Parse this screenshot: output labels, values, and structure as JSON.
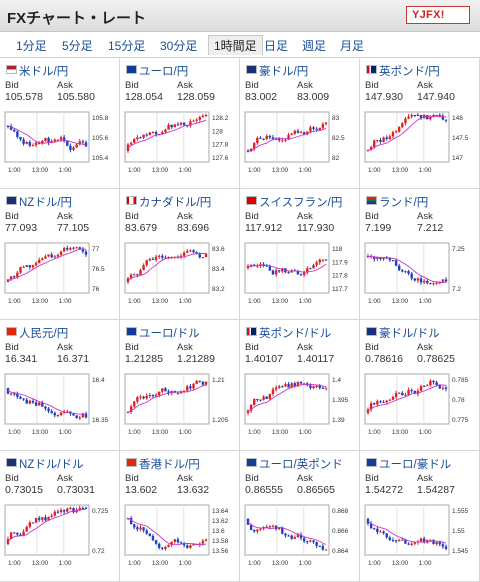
{
  "header": {
    "title": "FXチャート・レート",
    "logo_text": "YJFX!"
  },
  "tabs": [
    "1分足",
    "5分足",
    "15分足",
    "30分足",
    "1時間足",
    "日足",
    "週足",
    "月足"
  ],
  "active_tab": 4,
  "labels": {
    "bid": "Bid",
    "ask": "Ask"
  },
  "colors": {
    "up": "#dd2222",
    "down": "#1f3fbf",
    "ma": "#cc33cc",
    "link": "#1a4d99"
  },
  "cells": [
    {
      "pair": "米ドル/円",
      "flag": "us",
      "bid": "105.578",
      "ask": "105.580",
      "chart": {
        "yticks": [
          "105.8",
          "105.6",
          "105.4"
        ],
        "xticks": [
          "1:00",
          "13:00",
          "1:00"
        ],
        "trend": "down"
      }
    },
    {
      "pair": "ユーロ/円",
      "flag": "eu",
      "bid": "128.054",
      "ask": "128.059",
      "chart": {
        "yticks": [
          "128.2",
          "128",
          "127.8",
          "127.6"
        ],
        "xticks": [
          "1:00",
          "13:00",
          "1:00"
        ],
        "trend": "up"
      }
    },
    {
      "pair": "豪ドル/円",
      "flag": "au",
      "bid": "83.002",
      "ask": "83.009",
      "chart": {
        "yticks": [
          "83",
          "82.5",
          "82"
        ],
        "xticks": [
          "1:00",
          "13:00",
          "1:00"
        ],
        "trend": "up"
      }
    },
    {
      "pair": "英ポンド/円",
      "flag": "gb",
      "bid": "147.930",
      "ask": "147.940",
      "chart": {
        "yticks": [
          "148",
          "147.5",
          "147"
        ],
        "xticks": [
          "1:00",
          "13:00",
          "1:00"
        ],
        "trend": "up"
      }
    },
    {
      "pair": "NZドル/円",
      "flag": "nz",
      "bid": "77.093",
      "ask": "77.105",
      "chart": {
        "yticks": [
          "77",
          "76.5",
          "76"
        ],
        "xticks": [
          "1:00",
          "13:00",
          "1:00"
        ],
        "trend": "up"
      }
    },
    {
      "pair": "カナダドル/円",
      "flag": "ca",
      "bid": "83.679",
      "ask": "83.696",
      "chart": {
        "yticks": [
          "83.6",
          "83.4",
          "83.2"
        ],
        "xticks": [
          "1:00",
          "13:00",
          "1:00"
        ],
        "trend": "up"
      }
    },
    {
      "pair": "スイスフラン/円",
      "flag": "ch",
      "bid": "117.912",
      "ask": "117.930",
      "chart": {
        "yticks": [
          "118",
          "117.9",
          "117.8",
          "117.7"
        ],
        "xticks": [
          "1:00",
          "13:00",
          "1:00"
        ],
        "trend": "flat"
      }
    },
    {
      "pair": "ランド/円",
      "flag": "za",
      "bid": "7.199",
      "ask": "7.212",
      "chart": {
        "yticks": [
          "7.25",
          "7.2"
        ],
        "xticks": [
          "1:00",
          "13:00",
          "1:00"
        ],
        "trend": "down"
      }
    },
    {
      "pair": "人民元/円",
      "flag": "cn",
      "bid": "16.341",
      "ask": "16.371",
      "chart": {
        "yticks": [
          "16.4",
          "16.35"
        ],
        "xticks": [
          "1:00",
          "13:00",
          "1:00"
        ],
        "trend": "down"
      }
    },
    {
      "pair": "ユーロ/ドル",
      "flag": "eu",
      "bid": "1.21285",
      "ask": "1.21289",
      "chart": {
        "yticks": [
          "1.21",
          "1.205"
        ],
        "xticks": [
          "1:00",
          "13:00",
          "1:00"
        ],
        "trend": "up"
      }
    },
    {
      "pair": "英ポンド/ドル",
      "flag": "gb",
      "bid": "1.40107",
      "ask": "1.40117",
      "chart": {
        "yticks": [
          "1.4",
          "1.395",
          "1.39"
        ],
        "xticks": [
          "1:00",
          "13:00",
          "1:00"
        ],
        "trend": "up"
      }
    },
    {
      "pair": "豪ドル/ドル",
      "flag": "au",
      "bid": "0.78616",
      "ask": "0.78625",
      "chart": {
        "yticks": [
          "0.785",
          "0.78",
          "0.775"
        ],
        "xticks": [
          "1:00",
          "13:00",
          "1:00"
        ],
        "trend": "up"
      }
    },
    {
      "pair": "NZドル/ドル",
      "flag": "nz",
      "bid": "0.73015",
      "ask": "0.73031",
      "chart": {
        "yticks": [
          "0.725",
          "0.72"
        ],
        "xticks": [
          "1:00",
          "13:00",
          "1:00"
        ],
        "trend": "up"
      }
    },
    {
      "pair": "香港ドル/円",
      "flag": "hk",
      "bid": "13.602",
      "ask": "13.632",
      "chart": {
        "yticks": [
          "13.64",
          "13.62",
          "13.6",
          "13.58",
          "13.56"
        ],
        "xticks": [
          "1:00",
          "13:00",
          "1:00"
        ],
        "trend": "down"
      }
    },
    {
      "pair": "ユーロ/英ポンド",
      "flag": "eu",
      "bid": "0.86555",
      "ask": "0.86565",
      "chart": {
        "yticks": [
          "0.868",
          "0.866",
          "0.864"
        ],
        "xticks": [
          "1:00",
          "13:00",
          "1:00"
        ],
        "trend": "down"
      }
    },
    {
      "pair": "ユーロ/豪ドル",
      "flag": "eu",
      "bid": "1.54272",
      "ask": "1.54287",
      "chart": {
        "yticks": [
          "1.555",
          "1.55",
          "1.545"
        ],
        "xticks": [
          "1:00",
          "13:00",
          "1:00"
        ],
        "trend": "down"
      }
    }
  ]
}
